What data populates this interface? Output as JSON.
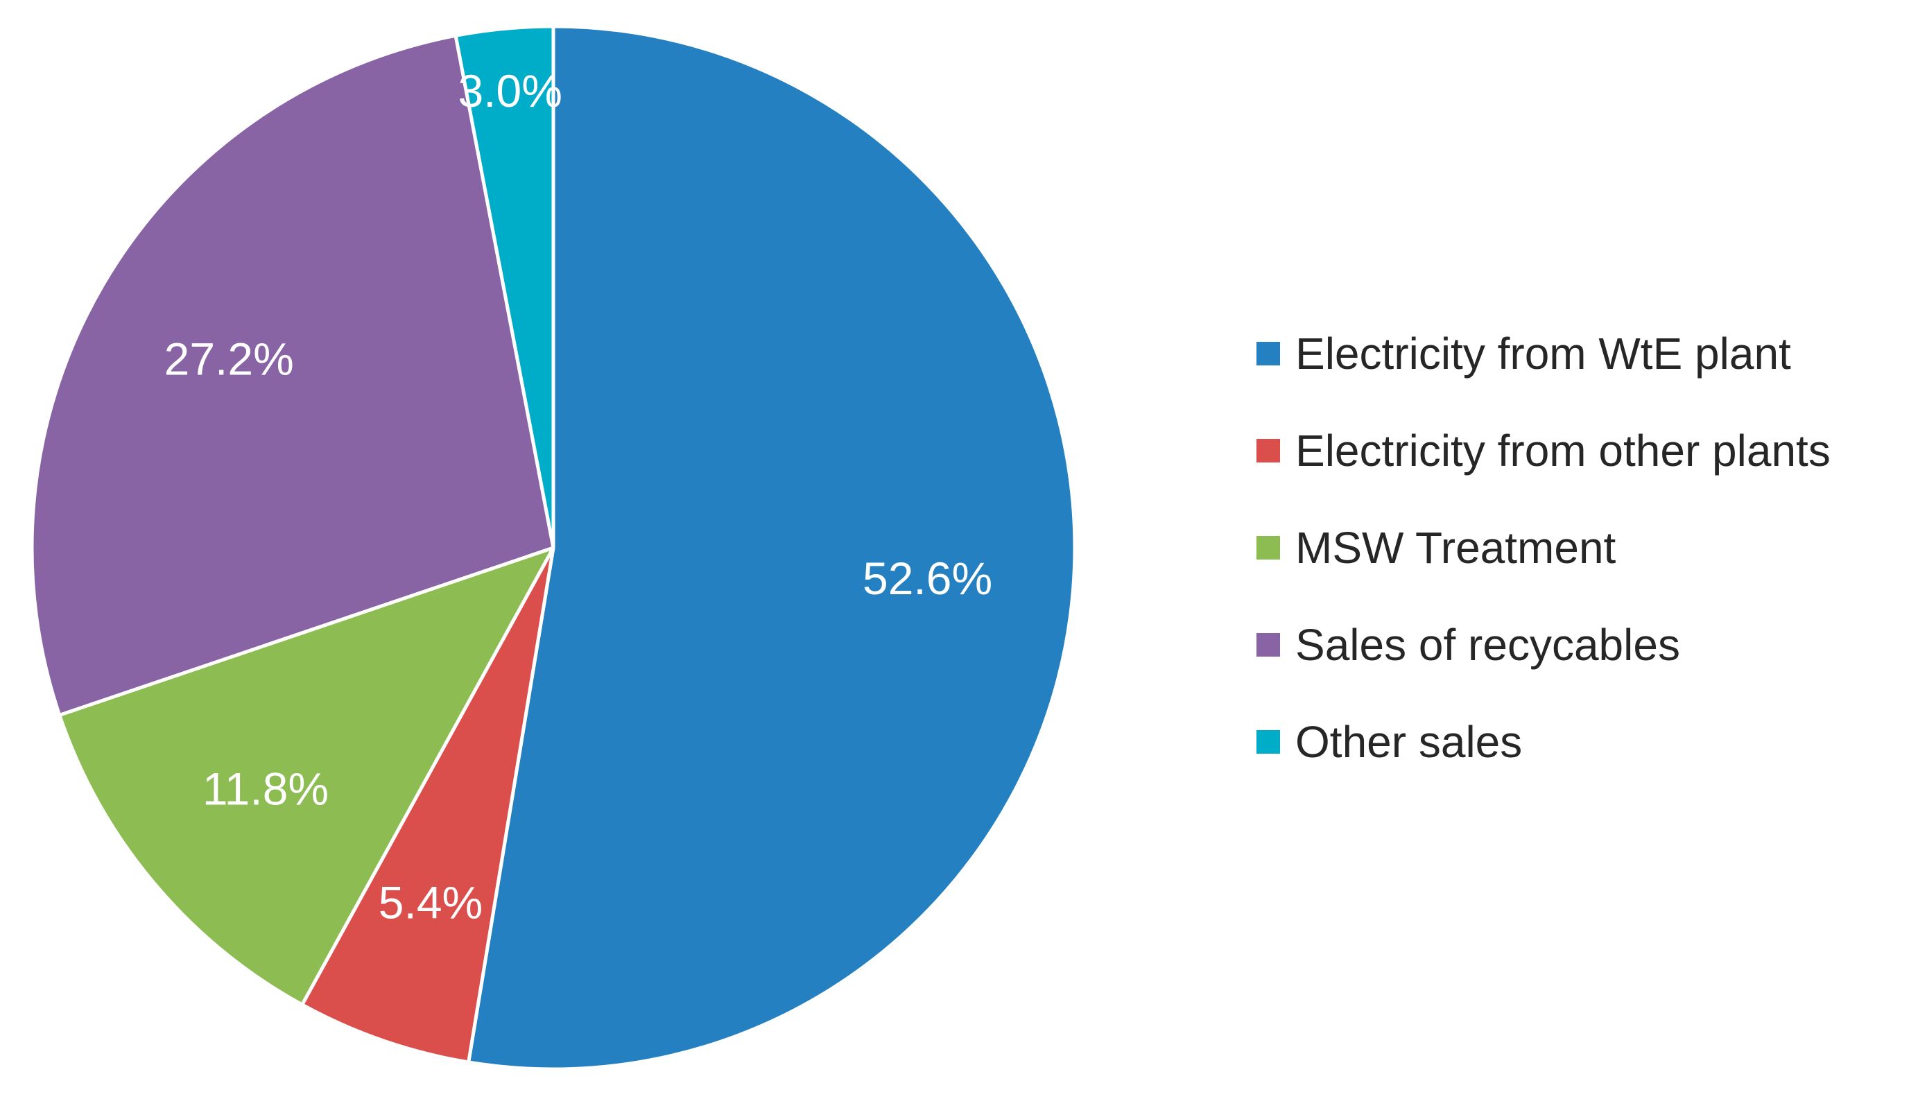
{
  "chart_data": {
    "type": "pie",
    "title": "",
    "legend_position": "right",
    "start_angle_deg": 0,
    "direction": "clockwise",
    "slices": [
      {
        "label": "Electricity from WtE plant",
        "value": 52.6,
        "data_label": "52.6%",
        "color": "#2480C0"
      },
      {
        "label": "Electricity from other plants",
        "value": 5.4,
        "data_label": "5.4%",
        "color": "#DA4F4B"
      },
      {
        "label": "MSW Treatment",
        "value": 11.8,
        "data_label": "11.8%",
        "color": "#8CBC52"
      },
      {
        "label": "Sales of recycables",
        "value": 27.2,
        "data_label": "27.2%",
        "color": "#8864A4"
      },
      {
        "label": "Other sales",
        "value": 3.0,
        "data_label": "3.0%",
        "color": "#00ADC8"
      }
    ]
  },
  "colors": {
    "background": "#FFFFFF",
    "slice_border": "#FFFFFF",
    "data_label_text": "#FFFFFF",
    "legend_text": "#262626"
  }
}
